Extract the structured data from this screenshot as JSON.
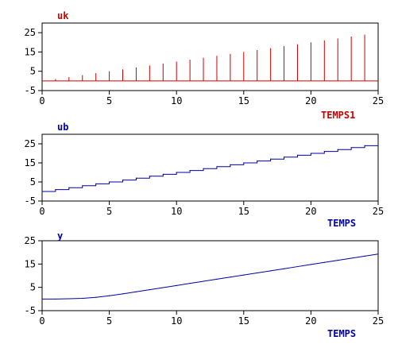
{
  "chart_data": [
    {
      "type": "bar",
      "title": "uk",
      "xlabel": "TEMPS1",
      "ylabel": "",
      "color": "#cc0000",
      "xlim": [
        0,
        25
      ],
      "ylim": [
        -5,
        30
      ],
      "xticks": [
        0,
        5,
        10,
        15,
        20,
        25
      ],
      "yticks": [
        -5,
        5,
        15,
        25
      ],
      "grid": false,
      "x": [
        1,
        2,
        3,
        4,
        5,
        6,
        7,
        8,
        9,
        10,
        11,
        12,
        13,
        14,
        15,
        16,
        17,
        18,
        19,
        20,
        21,
        22,
        23,
        24
      ],
      "values": [
        1,
        2,
        3,
        4,
        5,
        6,
        7,
        8,
        9,
        10,
        11,
        12,
        13,
        14,
        15,
        16,
        17,
        18,
        19,
        20,
        21,
        22,
        23,
        24
      ],
      "baseline": 0
    },
    {
      "type": "line",
      "title": "ub",
      "xlabel": "TEMPS",
      "ylabel": "",
      "color": "#0000aa",
      "step": true,
      "xlim": [
        0,
        25
      ],
      "ylim": [
        -5,
        30
      ],
      "xticks": [
        0,
        5,
        10,
        15,
        20,
        25
      ],
      "yticks": [
        -5,
        5,
        15,
        25
      ],
      "grid": false,
      "x": [
        0,
        1,
        2,
        3,
        4,
        5,
        6,
        7,
        8,
        9,
        10,
        11,
        12,
        13,
        14,
        15,
        16,
        17,
        18,
        19,
        20,
        21,
        22,
        23,
        24,
        25
      ],
      "values": [
        0,
        1,
        2,
        3,
        4,
        5,
        6,
        7,
        8,
        9,
        10,
        11,
        12,
        13,
        14,
        15,
        16,
        17,
        18,
        19,
        20,
        21,
        22,
        23,
        24,
        24
      ]
    },
    {
      "type": "line",
      "title": "y",
      "xlabel": "TEMPS",
      "ylabel": "",
      "color": "#0000aa",
      "step": false,
      "xlim": [
        0,
        25
      ],
      "ylim": [
        -5,
        25
      ],
      "xticks": [
        0,
        5,
        10,
        15,
        20,
        25
      ],
      "yticks": [
        -5,
        5,
        15,
        25
      ],
      "grid": false,
      "x": [
        0,
        1,
        2,
        3,
        4,
        5,
        6,
        7,
        8,
        9,
        10,
        11,
        12,
        13,
        14,
        15,
        16,
        17,
        18,
        19,
        20,
        21,
        22,
        23,
        24,
        25
      ],
      "values": [
        0,
        0,
        0.1,
        0.3,
        0.7,
        1.4,
        2.2,
        3.1,
        4.0,
        4.9,
        5.8,
        6.7,
        7.6,
        8.5,
        9.4,
        10.3,
        11.2,
        12.1,
        13.0,
        13.9,
        14.8,
        15.7,
        16.6,
        17.5,
        18.4,
        19.3
      ]
    }
  ]
}
